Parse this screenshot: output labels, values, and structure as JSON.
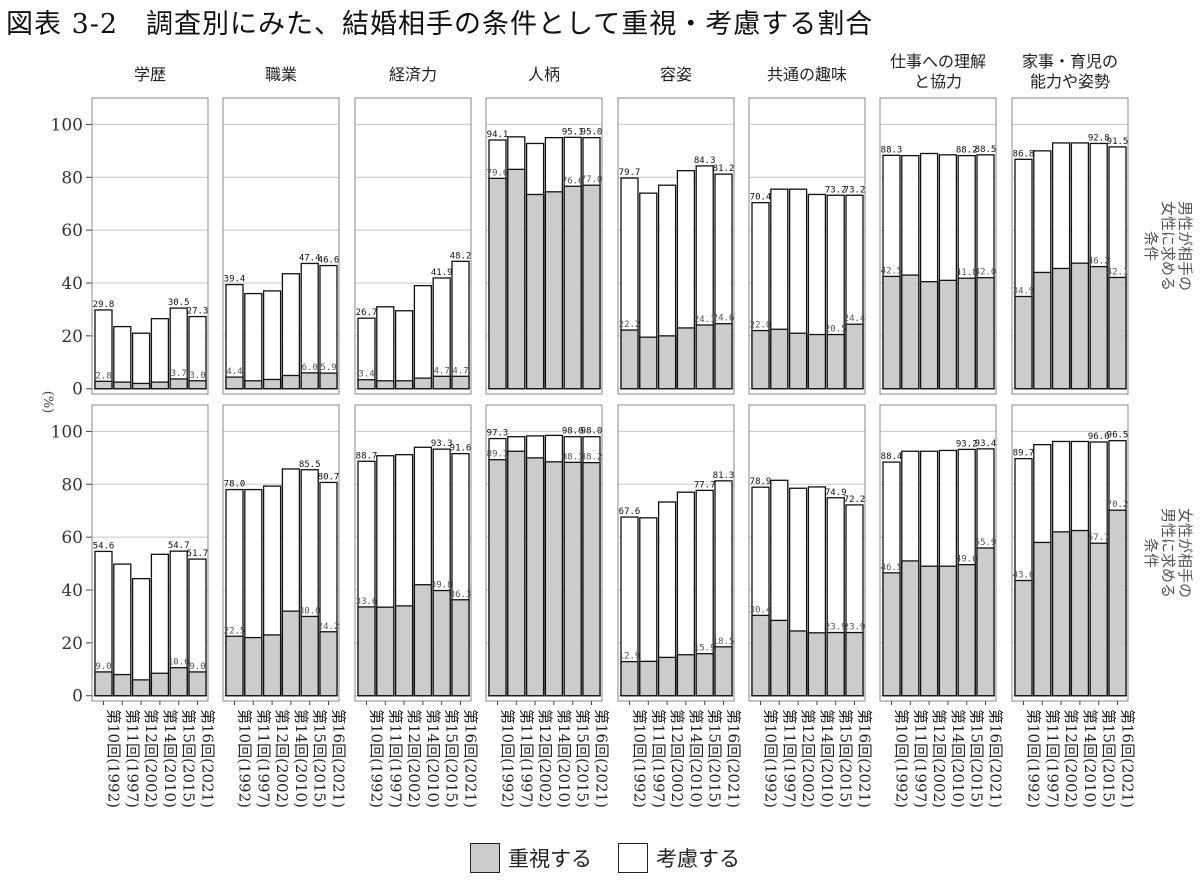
{
  "title": "図表 3-2　調査別にみた、結婚相手の条件として重視・考慮する割合",
  "y_axis_unit": "(%)",
  "legend": {
    "emphasize_label": "重視する",
    "consider_label": "考慮する"
  },
  "colors": {
    "emphasize": "#cccccc",
    "consider": "#ffffff",
    "grid": "#c8c8c8",
    "frame": "#888888"
  },
  "chart_data": {
    "type": "bar",
    "stacked_overlay": true,
    "y_ticks": [
      0,
      20,
      40,
      60,
      80,
      100
    ],
    "ylim": [
      -2,
      110
    ],
    "categories": [
      "第10回(1992)",
      "第11回(1997)",
      "第12回(2002)",
      "第14回(2010)",
      "第15回(2015)",
      "第16回(2021)"
    ],
    "columns": [
      "学歴",
      "職業",
      "経済力",
      "人柄",
      "容姿",
      "共通の趣味",
      "仕事への理解\nと協力",
      "家事・育児の\n能力や姿勢"
    ],
    "rows": [
      "男性が相手の\n女性に求める\n条件",
      "女性が相手の\n男性に求める\n条件"
    ],
    "panels": [
      [
        {
          "total": [
            29.8,
            23.5,
            21.0,
            26.5,
            30.5,
            27.3
          ],
          "emphasize": [
            2.8,
            2.5,
            2.0,
            2.5,
            3.7,
            3.0
          ],
          "total_labels": [
            "29.8",
            "",
            "",
            "",
            "30.5",
            "27.3"
          ],
          "emph_labels": [
            "2.8",
            "",
            "",
            "",
            "3.7",
            "3.0"
          ]
        },
        {
          "total": [
            39.4,
            36.0,
            37.0,
            43.5,
            47.4,
            46.6
          ],
          "emphasize": [
            4.4,
            3.0,
            3.5,
            5.0,
            6.0,
            5.9
          ],
          "total_labels": [
            "39.4",
            "",
            "",
            "",
            "47.4",
            "46.6"
          ],
          "emph_labels": [
            "4.4",
            "",
            "",
            "",
            "6.0",
            "5.9"
          ]
        },
        {
          "total": [
            26.7,
            31.0,
            29.5,
            39.0,
            41.9,
            48.2
          ],
          "emphasize": [
            3.4,
            3.0,
            3.0,
            4.0,
            4.7,
            4.7
          ],
          "total_labels": [
            "26.7",
            "",
            "",
            "",
            "41.9",
            "48.2"
          ],
          "emph_labels": [
            "3.4",
            "",
            "",
            "",
            "4.7",
            "4.7"
          ]
        },
        {
          "total": [
            94.1,
            95.3,
            92.8,
            95.0,
            95.1,
            95.0
          ],
          "emphasize": [
            79.6,
            83.0,
            73.5,
            74.5,
            76.6,
            77.0
          ],
          "total_labels": [
            "94.1",
            "",
            "",
            "",
            "95.1",
            "95.0"
          ],
          "emph_labels": [
            "79.6",
            "",
            "",
            "",
            "76.6",
            "77.0"
          ]
        },
        {
          "total": [
            79.7,
            74.0,
            77.0,
            82.5,
            84.3,
            81.2
          ],
          "emphasize": [
            22.2,
            19.5,
            20.0,
            23.0,
            24.1,
            24.6
          ],
          "total_labels": [
            "79.7",
            "",
            "",
            "",
            "84.3",
            "81.2"
          ],
          "emph_labels": [
            "22.2",
            "",
            "",
            "",
            "24.1",
            "24.6"
          ]
        },
        {
          "total": [
            70.4,
            75.5,
            75.5,
            73.5,
            73.2,
            73.2
          ],
          "emphasize": [
            22.0,
            22.5,
            21.0,
            20.5,
            20.5,
            24.4
          ],
          "total_labels": [
            "70.4",
            "",
            "",
            "",
            "73.2",
            "73.2"
          ],
          "emph_labels": [
            "22.0",
            "",
            "",
            "",
            "20.5",
            "24.4"
          ]
        },
        {
          "total": [
            88.3,
            88.2,
            89.0,
            88.5,
            88.2,
            88.5
          ],
          "emphasize": [
            42.5,
            43.0,
            40.5,
            41.0,
            41.8,
            42.0
          ],
          "total_labels": [
            "88.3",
            "",
            "",
            "",
            "88.2",
            "88.5"
          ],
          "emph_labels": [
            "42.5",
            "",
            "",
            "",
            "41.8",
            "42.0"
          ]
        },
        {
          "total": [
            86.8,
            90.0,
            93.0,
            93.0,
            92.8,
            91.5
          ],
          "emphasize": [
            34.9,
            44.0,
            45.5,
            47.5,
            46.2,
            42.1
          ],
          "total_labels": [
            "86.8",
            "",
            "",
            "",
            "92.8",
            "91.5"
          ],
          "emph_labels": [
            "34.9",
            "",
            "",
            "",
            "46.2",
            "42.1"
          ]
        }
      ],
      [
        {
          "total": [
            54.6,
            49.8,
            44.3,
            53.5,
            54.7,
            51.7
          ],
          "emphasize": [
            9.0,
            8.0,
            6.0,
            8.5,
            10.6,
            9.0
          ],
          "total_labels": [
            "54.6",
            "",
            "",
            "",
            "54.7",
            "51.7"
          ],
          "emph_labels": [
            "9.0",
            "",
            "",
            "",
            "10.6",
            "9.0"
          ]
        },
        {
          "total": [
            78.0,
            78.0,
            79.3,
            85.8,
            85.5,
            80.7
          ],
          "emphasize": [
            22.5,
            22.0,
            23.0,
            32.0,
            30.0,
            24.2
          ],
          "total_labels": [
            "78.0",
            "",
            "",
            "",
            "85.5",
            "80.7"
          ],
          "emph_labels": [
            "22.5",
            "",
            "",
            "",
            "30.0",
            "24.2"
          ]
        },
        {
          "total": [
            88.7,
            90.8,
            91.2,
            94.0,
            93.3,
            91.6
          ],
          "emphasize": [
            33.6,
            33.5,
            34.0,
            42.0,
            39.8,
            36.3
          ],
          "total_labels": [
            "88.7",
            "",
            "",
            "",
            "93.3",
            "91.6"
          ],
          "emph_labels": [
            "33.6",
            "",
            "",
            "",
            "39.8",
            "36.3"
          ]
        },
        {
          "total": [
            97.3,
            98.0,
            98.3,
            98.5,
            98.0,
            98.0
          ],
          "emphasize": [
            89.3,
            92.5,
            90.0,
            88.5,
            88.3,
            88.2
          ],
          "total_labels": [
            "97.3",
            "",
            "",
            "",
            "98.0",
            "98.0"
          ],
          "emph_labels": [
            "89.3",
            "",
            "",
            "",
            "88.3",
            "88.2"
          ]
        },
        {
          "total": [
            67.6,
            67.3,
            73.3,
            77.0,
            77.7,
            81.3
          ],
          "emphasize": [
            12.9,
            13.0,
            14.5,
            15.5,
            15.9,
            18.5
          ],
          "total_labels": [
            "67.6",
            "",
            "",
            "",
            "77.7",
            "81.3"
          ],
          "emph_labels": [
            "12.9",
            "",
            "",
            "",
            "15.9",
            "18.5"
          ]
        },
        {
          "total": [
            78.9,
            81.5,
            78.5,
            79.0,
            74.9,
            72.2
          ],
          "emphasize": [
            30.4,
            28.5,
            24.5,
            23.8,
            23.9,
            23.9
          ],
          "total_labels": [
            "78.9",
            "",
            "",
            "",
            "74.9",
            "72.2"
          ],
          "emph_labels": [
            "30.4",
            "",
            "",
            "",
            "23.9",
            "23.9"
          ]
        },
        {
          "total": [
            88.4,
            92.5,
            92.5,
            92.8,
            93.2,
            93.4
          ],
          "emphasize": [
            46.5,
            51.0,
            49.0,
            49.0,
            49.6,
            55.9
          ],
          "total_labels": [
            "88.4",
            "",
            "",
            "",
            "93.2",
            "93.4"
          ],
          "emph_labels": [
            "46.5",
            "",
            "",
            "",
            "49.6",
            "55.9"
          ]
        },
        {
          "total": [
            89.7,
            95.0,
            96.2,
            96.2,
            96.0,
            96.5
          ],
          "emphasize": [
            43.6,
            58.0,
            62.0,
            62.5,
            57.7,
            70.2
          ],
          "total_labels": [
            "89.7",
            "",
            "",
            "",
            "96.0",
            "96.5"
          ],
          "emph_labels": [
            "43.6",
            "",
            "",
            "",
            "57.7",
            "70.2"
          ]
        }
      ]
    ]
  }
}
